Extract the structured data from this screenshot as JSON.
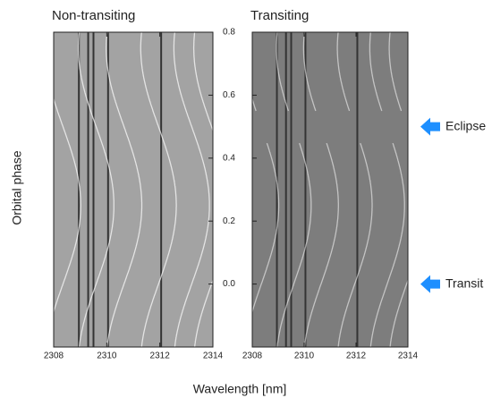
{
  "chart_data": {
    "type": "trail",
    "panels": [
      {
        "title": "Non-transiting",
        "background": "#a3a3a3"
      },
      {
        "title": "Transiting",
        "background": "#7d7d7d"
      }
    ],
    "y_label": "Orbital phase",
    "x_label": "Wavelength [nm]",
    "xlim": [
      2308,
      2314
    ],
    "xticks": [
      2308,
      2310,
      2312,
      2314
    ],
    "ylim": [
      -0.2,
      0.8
    ],
    "yticks": [
      0.8,
      0.6,
      0.4,
      0.2,
      {
        "value": 0,
        "label": "0.0"
      }
    ],
    "stellar_lines": [
      2308.95,
      2309.3,
      2309.5,
      2310.05,
      2312.05
    ],
    "planet_lines": [
      2308.35,
      2309.6,
      2310.65,
      2311.95,
      2313.2,
      2313.95
    ],
    "shift_amplitude": 0.67,
    "annotations": [
      {
        "text": "Eclipse",
        "y": 0.5
      },
      {
        "text": "Transit",
        "y": 0
      }
    ],
    "arrow_color": "#1e8fff"
  }
}
